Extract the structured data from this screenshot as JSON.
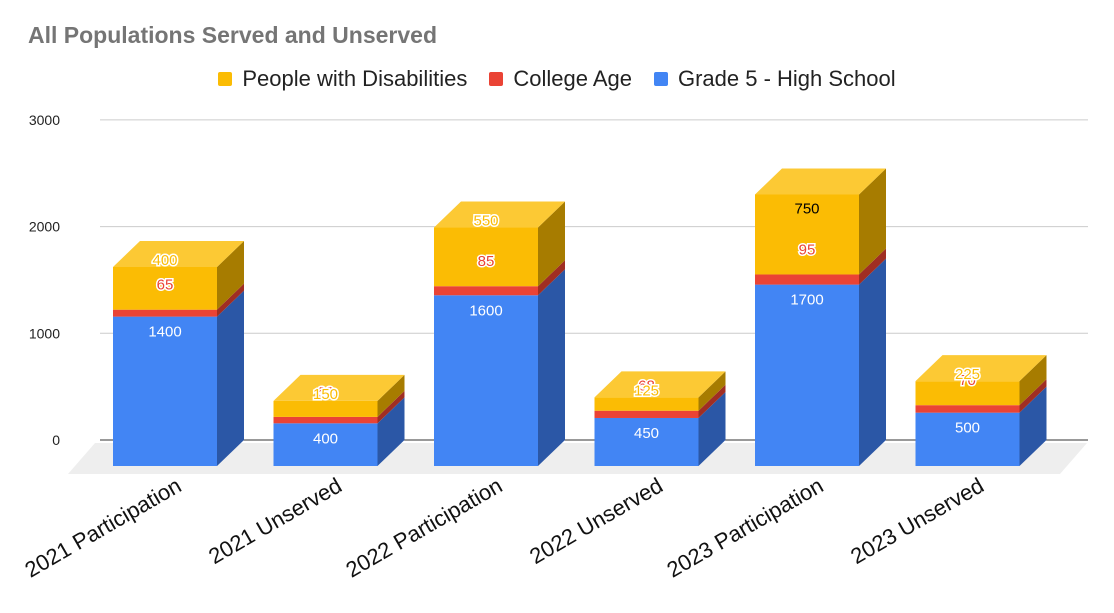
{
  "chart_data": {
    "type": "bar",
    "stacked": true,
    "three_d": true,
    "title": "All Populations Served and Unserved",
    "xlabel": "",
    "ylabel": "",
    "ylim": [
      0,
      3000
    ],
    "yticks": [
      "0",
      "1000",
      "2000",
      "3000"
    ],
    "grid": true,
    "legend_position": "top",
    "categories": [
      "2021 Participation",
      "2021 Unserved",
      "2022 Participation",
      "2022 Unserved",
      "2023 Participation",
      "2023 Unserved"
    ],
    "series": [
      {
        "name": "Grade 5 - High School",
        "color": "#4285f4",
        "side_color": "#2b57a6",
        "top_color": "#6fa1f6",
        "label_color": "#ffffff",
        "values": [
          1400,
          400,
          1600,
          450,
          1700,
          500
        ]
      },
      {
        "name": "College Age",
        "color": "#ea4335",
        "side_color": "#a02e23",
        "top_color": "#ef6b5f",
        "label_color": "#ea4335",
        "values": [
          65,
          60,
          85,
          68,
          95,
          70
        ]
      },
      {
        "name": "People with Disabilities",
        "color": "#fbbc04",
        "side_color": "#a77c00",
        "top_color": "#fcc934",
        "label_color": "#fbbc04",
        "values": [
          400,
          150,
          550,
          125,
          750,
          225
        ]
      }
    ],
    "legend_order": [
      "People with Disabilities",
      "College Age",
      "Grade 5 - High School"
    ]
  }
}
